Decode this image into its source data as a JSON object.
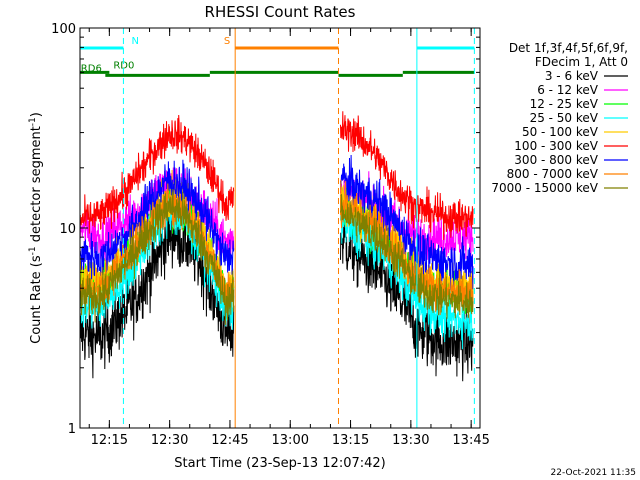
{
  "chart_data": {
    "type": "line",
    "title": "RHESSI Count Rates",
    "xlabel": "Start Time (23-Sep-13 12:07:42)",
    "ylabel_main": "Count Rate (s",
    "ylabel_sup": "-1",
    "ylabel_mid": " detector segment",
    "ylabel_tail": ")",
    "y_scale": "log",
    "ylim": [
      1,
      100
    ],
    "xlim_minutes": [
      727.7,
      827.2
    ],
    "x_ticks": [
      {
        "label": "12:15",
        "minute": 735
      },
      {
        "label": "12:30",
        "minute": 750
      },
      {
        "label": "12:45",
        "minute": 765
      },
      {
        "label": "13:00",
        "minute": 780
      },
      {
        "label": "13:15",
        "minute": 795
      },
      {
        "label": "13:30",
        "minute": 810
      },
      {
        "label": "13:45",
        "minute": 825
      }
    ],
    "y_ticks": [
      {
        "label": "1",
        "value": 1
      },
      {
        "label": "10",
        "value": 10
      },
      {
        "label": "100",
        "value": 100
      }
    ],
    "legend": {
      "placement": "right",
      "header": [
        "Det 1f,3f,4f,5f,6f,9f,",
        "FDecim 1, Att 0"
      ]
    },
    "series": [
      {
        "name": "3 - 6 keV",
        "color": "#000000",
        "noise": 0.32,
        "seg1": [
          [
            727.7,
            3.0
          ],
          [
            733,
            2.8
          ],
          [
            740,
            4.0
          ],
          [
            746,
            6.5
          ],
          [
            750,
            9.5
          ],
          [
            754,
            8.5
          ],
          [
            758,
            6.5
          ],
          [
            762,
            4.0
          ],
          [
            764,
            3.0
          ],
          [
            766,
            3.0
          ]
        ],
        "seg2": [
          [
            792.5,
            9.0
          ],
          [
            796,
            7.5
          ],
          [
            802,
            6.0
          ],
          [
            808,
            4.2
          ],
          [
            812,
            3.0
          ],
          [
            818,
            2.7
          ],
          [
            825.5,
            2.6
          ]
        ]
      },
      {
        "name": "6 - 12 keV",
        "color": "#ff00ff",
        "noise": 0.22,
        "seg1": [
          [
            727.7,
            10.0
          ],
          [
            733,
            9.0
          ],
          [
            740,
            11.0
          ],
          [
            746,
            15.0
          ],
          [
            750,
            16.5
          ],
          [
            754,
            15.5
          ],
          [
            758,
            13.0
          ],
          [
            762,
            10.0
          ],
          [
            764,
            8.5
          ],
          [
            766,
            9.0
          ]
        ],
        "seg2": [
          [
            792.5,
            16.0
          ],
          [
            796,
            14.5
          ],
          [
            802,
            12.5
          ],
          [
            808,
            10.0
          ],
          [
            812,
            9.0
          ],
          [
            818,
            9.0
          ],
          [
            825.5,
            9.0
          ]
        ]
      },
      {
        "name": "12 - 25 keV",
        "color": "#00ff00",
        "noise": 0.22,
        "seg1": [
          [
            727.7,
            5.5
          ],
          [
            733,
            5.0
          ],
          [
            740,
            7.0
          ],
          [
            746,
            11.0
          ],
          [
            750,
            13.5
          ],
          [
            754,
            12.0
          ],
          [
            758,
            9.0
          ],
          [
            762,
            6.0
          ],
          [
            764,
            4.5
          ],
          [
            766,
            5.0
          ]
        ],
        "seg2": [
          [
            792.5,
            13.0
          ],
          [
            796,
            11.5
          ],
          [
            802,
            9.5
          ],
          [
            808,
            6.8
          ],
          [
            812,
            5.5
          ],
          [
            818,
            4.8
          ],
          [
            825.5,
            4.6
          ]
        ]
      },
      {
        "name": "25 - 50 keV",
        "color": "#00ffff",
        "noise": 0.22,
        "seg1": [
          [
            727.7,
            4.0
          ],
          [
            733,
            4.0
          ],
          [
            740,
            6.0
          ],
          [
            746,
            9.5
          ],
          [
            750,
            12.0
          ],
          [
            754,
            10.5
          ],
          [
            758,
            8.0
          ],
          [
            762,
            5.0
          ],
          [
            764,
            3.8
          ],
          [
            766,
            4.0
          ]
        ],
        "seg2": [
          [
            792.5,
            11.0
          ],
          [
            796,
            9.5
          ],
          [
            802,
            8.0
          ],
          [
            808,
            5.5
          ],
          [
            812,
            4.2
          ],
          [
            818,
            3.6
          ],
          [
            825.5,
            3.4
          ]
        ]
      },
      {
        "name": "50 - 100 keV",
        "color": "#ffcc00",
        "noise": 0.22,
        "seg1": [
          [
            727.7,
            6.0
          ],
          [
            733,
            5.5
          ],
          [
            740,
            8.0
          ],
          [
            746,
            12.0
          ],
          [
            750,
            14.5
          ],
          [
            754,
            13.0
          ],
          [
            758,
            10.0
          ],
          [
            762,
            6.5
          ],
          [
            764,
            5.0
          ],
          [
            766,
            5.5
          ]
        ],
        "seg2": [
          [
            792.5,
            14.0
          ],
          [
            796,
            12.5
          ],
          [
            802,
            10.5
          ],
          [
            808,
            7.5
          ],
          [
            812,
            6.0
          ],
          [
            818,
            5.3
          ],
          [
            825.5,
            5.0
          ]
        ]
      },
      {
        "name": "100 - 300 keV",
        "color": "#ff0000",
        "noise": 0.18,
        "seg1": [
          [
            727.7,
            11.0
          ],
          [
            733,
            11.5
          ],
          [
            740,
            16.0
          ],
          [
            746,
            24.0
          ],
          [
            750,
            30.0
          ],
          [
            754,
            28.0
          ],
          [
            758,
            22.0
          ],
          [
            762,
            16.0
          ],
          [
            764,
            13.0
          ],
          [
            766,
            14.0
          ]
        ],
        "seg2": [
          [
            792.5,
            31.0
          ],
          [
            796,
            30.0
          ],
          [
            800,
            25.0
          ],
          [
            804,
            19.0
          ],
          [
            808,
            14.5
          ],
          [
            812,
            12.5
          ],
          [
            818,
            11.5
          ],
          [
            825.5,
            11.0
          ]
        ]
      },
      {
        "name": "300 - 800 keV",
        "color": "#0000ff",
        "noise": 0.22,
        "seg1": [
          [
            727.7,
            7.5
          ],
          [
            733,
            7.0
          ],
          [
            740,
            9.5
          ],
          [
            746,
            14.5
          ],
          [
            750,
            17.5
          ],
          [
            754,
            16.0
          ],
          [
            758,
            12.5
          ],
          [
            762,
            8.5
          ],
          [
            764,
            7.0
          ],
          [
            766,
            7.5
          ]
        ],
        "seg2": [
          [
            792.5,
            18.0
          ],
          [
            796,
            16.0
          ],
          [
            802,
            13.5
          ],
          [
            808,
            9.5
          ],
          [
            812,
            7.5
          ],
          [
            818,
            6.8
          ],
          [
            825.5,
            6.5
          ]
        ]
      },
      {
        "name": "800 - 7000 keV",
        "color": "#ff8000",
        "noise": 0.2,
        "seg1": [
          [
            727.7,
            5.0
          ],
          [
            733,
            5.0
          ],
          [
            740,
            7.5
          ],
          [
            746,
            11.0
          ],
          [
            750,
            13.5
          ],
          [
            754,
            12.0
          ],
          [
            758,
            9.0
          ],
          [
            762,
            6.0
          ],
          [
            764,
            4.8
          ],
          [
            766,
            5.0
          ]
        ],
        "seg2": [
          [
            792.5,
            13.5
          ],
          [
            796,
            12.0
          ],
          [
            802,
            10.0
          ],
          [
            808,
            7.0
          ],
          [
            812,
            5.5
          ],
          [
            818,
            4.8
          ],
          [
            825.5,
            4.6
          ]
        ]
      },
      {
        "name": "7000 - 15000 keV",
        "color": "#808000",
        "noise": 0.2,
        "seg1": [
          [
            727.7,
            4.5
          ],
          [
            733,
            4.5
          ],
          [
            740,
            7.0
          ],
          [
            746,
            10.5
          ],
          [
            750,
            13.0
          ],
          [
            754,
            11.5
          ],
          [
            758,
            8.5
          ],
          [
            762,
            5.5
          ],
          [
            764,
            4.3
          ],
          [
            766,
            4.5
          ]
        ],
        "seg2": [
          [
            792.5,
            12.5
          ],
          [
            796,
            11.0
          ],
          [
            802,
            9.0
          ],
          [
            808,
            6.5
          ],
          [
            812,
            5.0
          ],
          [
            818,
            4.4
          ],
          [
            825.5,
            4.2
          ]
        ]
      }
    ],
    "vertical_markers": [
      {
        "minute": 727.7,
        "color": "#00ffff",
        "style": "solid"
      },
      {
        "minute": 738.5,
        "color": "#00ffff",
        "style": "dashed"
      },
      {
        "minute": 766.3,
        "color": "#ff8000",
        "style": "solid"
      },
      {
        "minute": 792.0,
        "color": "#ff8000",
        "style": "dashed"
      },
      {
        "minute": 811.5,
        "color": "#00ffff",
        "style": "solid"
      },
      {
        "minute": 825.8,
        "color": "#00ffff",
        "style": "dashed"
      }
    ],
    "flag_bars": [
      {
        "start": 727.7,
        "end": 738.5,
        "color": "#00ffff",
        "level": 100,
        "label": "N",
        "label_minute": 740.5
      },
      {
        "start": 766.3,
        "end": 792.0,
        "color": "#ff8000",
        "level": 100,
        "label": "S",
        "label_minute": 763.5
      },
      {
        "start": 811.5,
        "end": 825.8,
        "color": "#00ffff",
        "level": 100,
        "label": "",
        "label_minute": 0
      },
      {
        "start": 727.7,
        "end": 735.0,
        "color": "#008000",
        "level": 80,
        "label": "RD0",
        "label_minute": 736.0
      },
      {
        "start": 734.0,
        "end": 760.0,
        "color": "#008000",
        "level": 73,
        "label": "RD6",
        "label_minute": 727.9
      },
      {
        "start": 760.0,
        "end": 792.0,
        "color": "#008000",
        "level": 80,
        "label": "",
        "label_minute": 0
      },
      {
        "start": 792.0,
        "end": 808.0,
        "color": "#008000",
        "level": 73,
        "label": "",
        "label_minute": 0
      },
      {
        "start": 808.0,
        "end": 825.8,
        "color": "#008000",
        "level": 80,
        "label": "",
        "label_minute": 0
      }
    ]
  },
  "footer": {
    "date_stamp": "22-Oct-2021 11:35"
  }
}
